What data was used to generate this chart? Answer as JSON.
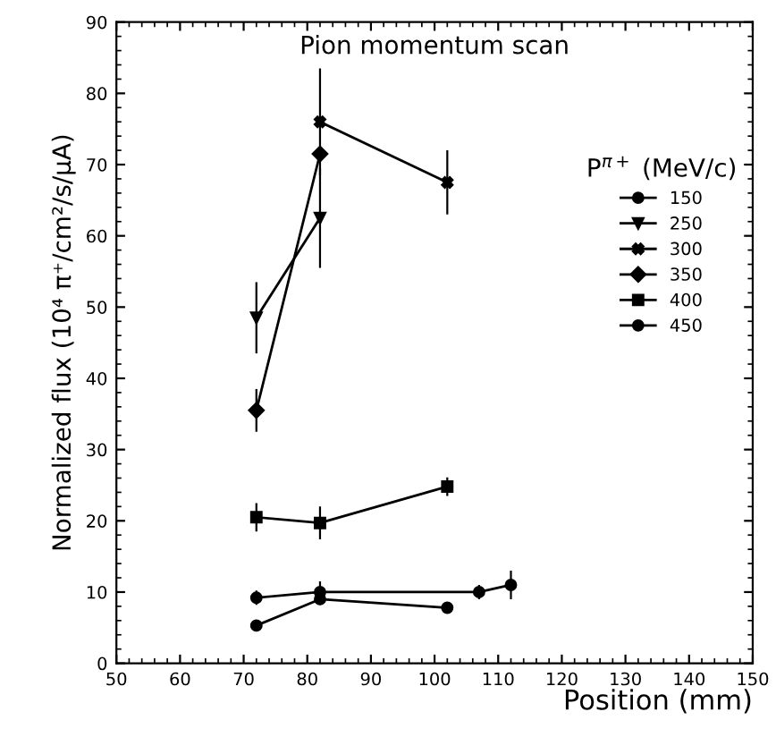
{
  "chart_data": {
    "type": "line",
    "title": "Pion momentum scan",
    "xlabel": "Position (mm)",
    "ylabel": "Normalized flux (10⁴ π⁺/cm²/s/μA)",
    "legend_title": "P$^{π+}$ (MeV/c)",
    "xlim": [
      50,
      150
    ],
    "xticks": [
      50,
      60,
      70,
      80,
      90,
      100,
      110,
      120,
      130,
      140,
      150
    ],
    "ylim": [
      0,
      90
    ],
    "yticks": [
      0,
      10,
      20,
      30,
      40,
      50,
      60,
      70,
      80,
      90
    ],
    "grid": false,
    "legend": "right",
    "line_style": "solid",
    "series": [
      {
        "name": "150",
        "color": "#000000",
        "marker": "circle",
        "x": [
          72,
          82,
          107,
          112
        ],
        "values": [
          9.2,
          10,
          10,
          11
        ],
        "errors": [
          1,
          1.5,
          1,
          2
        ]
      },
      {
        "name": "250",
        "color": "#000000",
        "marker": "triangle",
        "x": [
          72,
          82
        ],
        "values": [
          48.5,
          62.5
        ],
        "errors": [
          5,
          7
        ]
      },
      {
        "name": "300",
        "color": "#000000",
        "marker": "cross",
        "x": [
          82,
          102
        ],
        "values": [
          76,
          67.5
        ],
        "errors": [
          7.5,
          4.5
        ]
      },
      {
        "name": "350",
        "color": "#000000",
        "marker": "diamond",
        "x": [
          72,
          82
        ],
        "values": [
          35.5,
          71.5
        ],
        "errors": [
          3,
          null
        ]
      },
      {
        "name": "400",
        "color": "#000000",
        "marker": "square",
        "x": [
          72,
          82,
          102
        ],
        "values": [
          20.5,
          19.7,
          24.8
        ],
        "errors": [
          2,
          2.3,
          1.3
        ]
      },
      {
        "name": "450",
        "color": "#000000",
        "marker": "circle",
        "x": [
          72,
          82,
          102
        ],
        "values": [
          5.3,
          9,
          7.8
        ],
        "errors": [
          null,
          0.8,
          null
        ]
      }
    ]
  }
}
